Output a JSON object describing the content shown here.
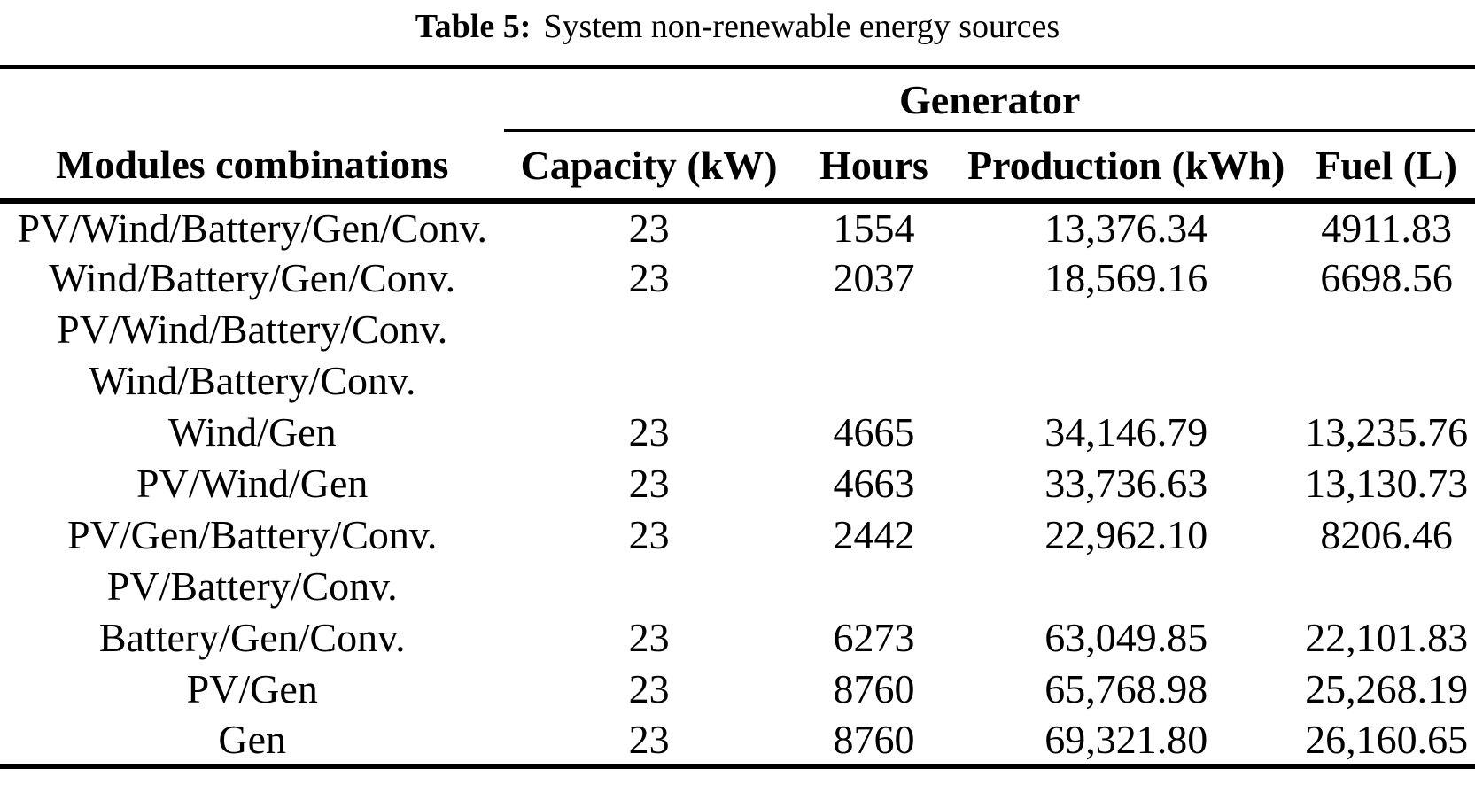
{
  "caption": {
    "label": "Table 5:",
    "text": "System non-renewable energy sources"
  },
  "table": {
    "group_header": "Generator",
    "columns": [
      "Modules combinations",
      "Capacity (kW)",
      "Hours",
      "Production (kWh)",
      "Fuel (L)"
    ],
    "rows": [
      [
        "PV/Wind/Battery/Gen/Conv.",
        "23",
        "1554",
        "13,376.34",
        "4911.83"
      ],
      [
        "Wind/Battery/Gen/Conv.",
        "23",
        "2037",
        "18,569.16",
        "6698.56"
      ],
      [
        "PV/Wind/Battery/Conv.",
        "",
        "",
        "",
        ""
      ],
      [
        "Wind/Battery/Conv.",
        "",
        "",
        "",
        ""
      ],
      [
        "Wind/Gen",
        "23",
        "4665",
        "34,146.79",
        "13,235.76"
      ],
      [
        "PV/Wind/Gen",
        "23",
        "4663",
        "33,736.63",
        "13,130.73"
      ],
      [
        "PV/Gen/Battery/Conv.",
        "23",
        "2442",
        "22,962.10",
        "8206.46"
      ],
      [
        "PV/Battery/Conv.",
        "",
        "",
        "",
        ""
      ],
      [
        "Battery/Gen/Conv.",
        "23",
        "6273",
        "63,049.85",
        "22,101.83"
      ],
      [
        "PV/Gen",
        "23",
        "8760",
        "65,768.98",
        "25,268.19"
      ],
      [
        "Gen",
        "23",
        "8760",
        "69,321.80",
        "26,160.65"
      ]
    ]
  },
  "colors": {
    "text": "#000000",
    "background": "#ffffff",
    "rule": "#000000"
  }
}
